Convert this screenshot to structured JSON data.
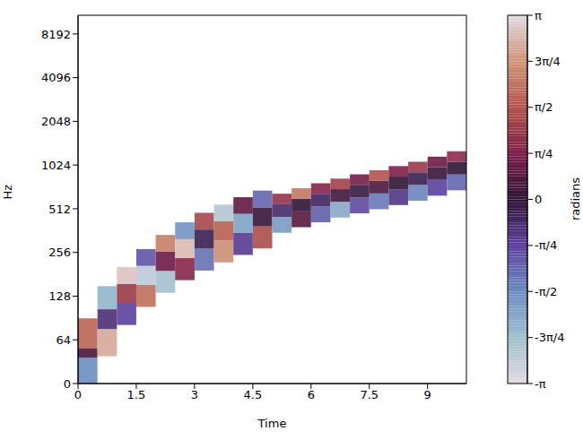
{
  "chart_data": {
    "type": "heatmap",
    "x_label": "Time",
    "y_label": "Hz",
    "log": "y",
    "xlim": [
      0,
      10
    ],
    "xticks": [
      0,
      1.5,
      3,
      4.5,
      6,
      7.5,
      9
    ],
    "ylim": [
      0,
      11025
    ],
    "yticks": [
      0,
      64,
      128,
      256,
      512,
      1024,
      2048,
      4096,
      8192
    ],
    "cells": [
      {
        "x0": 0,
        "x1": 0.5,
        "y0": 0,
        "y1": 38,
        "value": -1.6
      },
      {
        "x0": 0,
        "x1": 0.5,
        "y0": 38,
        "y1": 52,
        "value": 0.3
      },
      {
        "x0": 0,
        "x1": 0.5,
        "y0": 52,
        "y1": 90,
        "value": 1.8
      },
      {
        "x0": 0.5,
        "x1": 1,
        "y0": 40,
        "y1": 76,
        "value": 2.6
      },
      {
        "x0": 0.5,
        "x1": 1,
        "y0": 76,
        "y1": 104,
        "value": -0.5
      },
      {
        "x0": 0.5,
        "x1": 1,
        "y0": 104,
        "y1": 150,
        "value": -2.2
      },
      {
        "x0": 1,
        "x1": 1.5,
        "y0": 81,
        "y1": 115,
        "value": -0.8
      },
      {
        "x0": 1,
        "x1": 1.5,
        "y0": 115,
        "y1": 155,
        "value": 1.2
      },
      {
        "x0": 1,
        "x1": 1.5,
        "y0": 155,
        "y1": 203,
        "value": 2.9
      },
      {
        "x0": 1.5,
        "x1": 2,
        "y0": 108,
        "y1": 153,
        "value": 1.9
      },
      {
        "x0": 1.5,
        "x1": 2,
        "y0": 153,
        "y1": 207,
        "value": -2.7
      },
      {
        "x0": 1.5,
        "x1": 2,
        "y0": 207,
        "y1": 270,
        "value": -1.0
      },
      {
        "x0": 2,
        "x1": 2.5,
        "y0": 135,
        "y1": 191,
        "value": -2.4
      },
      {
        "x0": 2,
        "x1": 2.5,
        "y0": 191,
        "y1": 259,
        "value": 0.6
      },
      {
        "x0": 2,
        "x1": 2.5,
        "y0": 259,
        "y1": 338,
        "value": 2.1
      },
      {
        "x0": 2.5,
        "x1": 3,
        "y0": 165,
        "y1": 234,
        "value": 0.9
      },
      {
        "x0": 2.5,
        "x1": 3,
        "y0": 234,
        "y1": 316,
        "value": 2.8
      },
      {
        "x0": 2.5,
        "x1": 3,
        "y0": 316,
        "y1": 413,
        "value": -1.7
      },
      {
        "x0": 3,
        "x1": 3.5,
        "y0": 192,
        "y1": 272,
        "value": -1.3
      },
      {
        "x0": 3,
        "x1": 3.5,
        "y0": 272,
        "y1": 368,
        "value": -0.2
      },
      {
        "x0": 3,
        "x1": 3.5,
        "y0": 368,
        "y1": 480,
        "value": 1.4
      },
      {
        "x0": 3.5,
        "x1": 4,
        "y0": 219,
        "y1": 310,
        "value": 2.3
      },
      {
        "x0": 3.5,
        "x1": 4,
        "y0": 310,
        "y1": 420,
        "value": 1.7
      },
      {
        "x0": 3.5,
        "x1": 4,
        "y0": 420,
        "y1": 548,
        "value": -2.6
      },
      {
        "x0": 4,
        "x1": 4.5,
        "y0": 246,
        "y1": 349,
        "value": -0.7
      },
      {
        "x0": 4,
        "x1": 4.5,
        "y0": 349,
        "y1": 472,
        "value": -1.9
      },
      {
        "x0": 4,
        "x1": 4.5,
        "y0": 472,
        "y1": 615,
        "value": 0.5
      },
      {
        "x0": 4.5,
        "x1": 5,
        "y0": 273,
        "y1": 387,
        "value": 1.5
      },
      {
        "x0": 4.5,
        "x1": 5,
        "y0": 387,
        "y1": 523,
        "value": 0.1
      },
      {
        "x0": 4.5,
        "x1": 5,
        "y0": 523,
        "y1": 683,
        "value": -1.2
      },
      {
        "x0": 5,
        "x1": 5.5,
        "y0": 350,
        "y1": 450,
        "value": -1.8
      },
      {
        "x0": 5,
        "x1": 5.5,
        "y0": 450,
        "y1": 550,
        "value": -0.4
      },
      {
        "x0": 5,
        "x1": 5.5,
        "y0": 550,
        "y1": 650,
        "value": 1.1
      },
      {
        "x0": 5.5,
        "x1": 6,
        "y0": 382,
        "y1": 491,
        "value": 0.4
      },
      {
        "x0": 5.5,
        "x1": 6,
        "y0": 491,
        "y1": 600,
        "value": 0.0
      },
      {
        "x0": 5.5,
        "x1": 6,
        "y0": 600,
        "y1": 709,
        "value": 2.0
      },
      {
        "x0": 6,
        "x1": 6.5,
        "y0": 413,
        "y1": 531,
        "value": -1.1
      },
      {
        "x0": 6,
        "x1": 6.5,
        "y0": 531,
        "y1": 649,
        "value": -0.3
      },
      {
        "x0": 6,
        "x1": 6.5,
        "y0": 649,
        "y1": 767,
        "value": 0.9
      },
      {
        "x0": 6.5,
        "x1": 7,
        "y0": 445,
        "y1": 572,
        "value": -2.0
      },
      {
        "x0": 6.5,
        "x1": 7,
        "y0": 572,
        "y1": 699,
        "value": 0.2
      },
      {
        "x0": 6.5,
        "x1": 7,
        "y0": 699,
        "y1": 826,
        "value": 1.3
      },
      {
        "x0": 7,
        "x1": 7.5,
        "y0": 476,
        "y1": 612,
        "value": -0.9
      },
      {
        "x0": 7,
        "x1": 7.5,
        "y0": 612,
        "y1": 748,
        "value": -0.1
      },
      {
        "x0": 7,
        "x1": 7.5,
        "y0": 748,
        "y1": 884,
        "value": 0.7
      },
      {
        "x0": 7.5,
        "x1": 8,
        "y0": 508,
        "y1": 653,
        "value": -1.4
      },
      {
        "x0": 7.5,
        "x1": 8,
        "y0": 653,
        "y1": 798,
        "value": 0.3
      },
      {
        "x0": 7.5,
        "x1": 8,
        "y0": 798,
        "y1": 943,
        "value": 1.6
      },
      {
        "x0": 8,
        "x1": 8.5,
        "y0": 543,
        "y1": 698,
        "value": -0.6
      },
      {
        "x0": 8,
        "x1": 8.5,
        "y0": 698,
        "y1": 853,
        "value": 0.0
      },
      {
        "x0": 8,
        "x1": 8.5,
        "y0": 853,
        "y1": 1008,
        "value": 0.8
      },
      {
        "x0": 8.5,
        "x1": 9,
        "y0": 581,
        "y1": 747,
        "value": -1.5
      },
      {
        "x0": 8.5,
        "x1": 9,
        "y0": 747,
        "y1": 913,
        "value": -0.2
      },
      {
        "x0": 8.5,
        "x1": 9,
        "y0": 913,
        "y1": 1079,
        "value": 1.2
      },
      {
        "x0": 9,
        "x1": 9.5,
        "y0": 630,
        "y1": 810,
        "value": -0.8
      },
      {
        "x0": 9,
        "x1": 9.5,
        "y0": 810,
        "y1": 990,
        "value": 0.1
      },
      {
        "x0": 9,
        "x1": 9.5,
        "y0": 990,
        "y1": 1170,
        "value": 0.6
      },
      {
        "x0": 9.5,
        "x1": 10,
        "y0": 686,
        "y1": 882,
        "value": -1.2
      },
      {
        "x0": 9.5,
        "x1": 10,
        "y0": 882,
        "y1": 1078,
        "value": 0.0
      },
      {
        "x0": 9.5,
        "x1": 10,
        "y0": 1078,
        "y1": 1274,
        "value": 1.0
      }
    ],
    "colorbar": {
      "label": "radians",
      "range": [
        -3.1416,
        3.1416
      ],
      "ticks": [
        {
          "value": -3.1416,
          "label": "-π"
        },
        {
          "value": -2.3562,
          "label": "-3π/4"
        },
        {
          "value": -1.5708,
          "label": "-π/2"
        },
        {
          "value": -0.7854,
          "label": "-π/4"
        },
        0,
        {
          "value": 0.7854,
          "label": "π/4"
        },
        {
          "value": 1.5708,
          "label": "π/2"
        },
        {
          "value": 2.3562,
          "label": "3π/4"
        },
        {
          "value": 3.1416,
          "label": "π"
        }
      ]
    }
  }
}
